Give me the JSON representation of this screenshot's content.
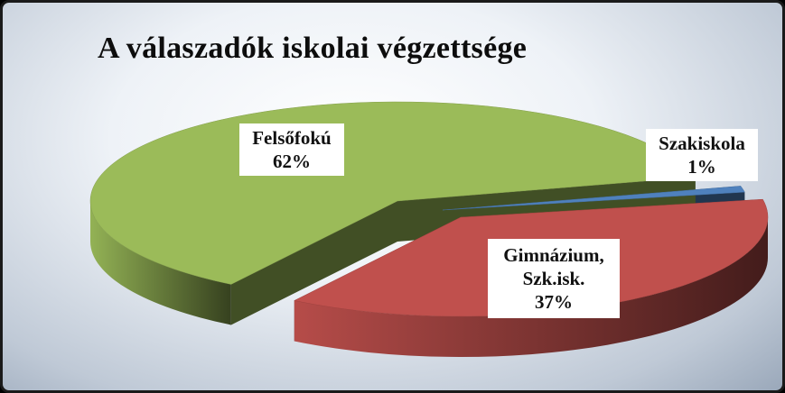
{
  "chart_data": {
    "type": "pie",
    "title": "A válaszadók iskolai végzettsége",
    "slices": [
      {
        "label_lines": [
          "Szakiskola"
        ],
        "value": 1,
        "value_label": "1%",
        "color": "#4f81bd"
      },
      {
        "label_lines": [
          "Gimnázium,",
          "Szk.isk."
        ],
        "value": 37,
        "value_label": "37%",
        "color": "#c0504d"
      },
      {
        "label_lines": [
          "Felsőfokú"
        ],
        "value": 62,
        "value_label": "62%",
        "color": "#9bbb59"
      }
    ]
  }
}
